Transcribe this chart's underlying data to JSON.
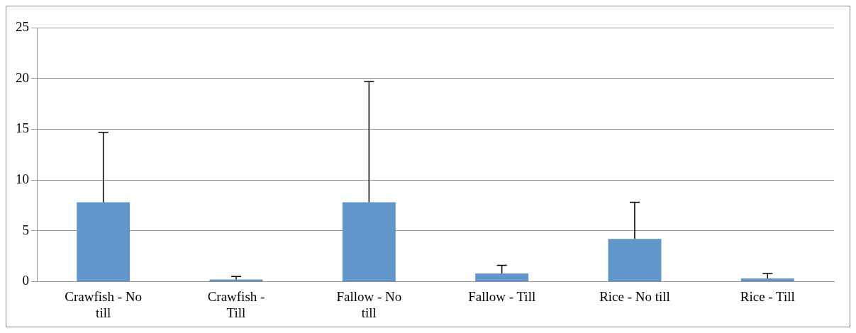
{
  "chart_data": {
    "type": "bar",
    "categories": [
      "Crawfish - No till",
      "Crawfish - Till",
      "Fallow - No till",
      "Fallow - Till",
      "Rice - No till",
      "Rice - Till"
    ],
    "values": [
      7.8,
      0.2,
      7.8,
      0.8,
      4.2,
      0.3
    ],
    "color": "#6096c9",
    "errors": [
      [
        7.8,
        14.7
      ],
      [
        0.2,
        0.5
      ],
      [
        7.8,
        19.7
      ],
      [
        0.8,
        1.6
      ],
      [
        4.2,
        7.8
      ],
      [
        0.3,
        0.8
      ]
    ],
    "ylim": [
      0,
      25
    ],
    "yticks": [
      0,
      5,
      10,
      15,
      20,
      25
    ],
    "grid": "y",
    "legend": false
  }
}
